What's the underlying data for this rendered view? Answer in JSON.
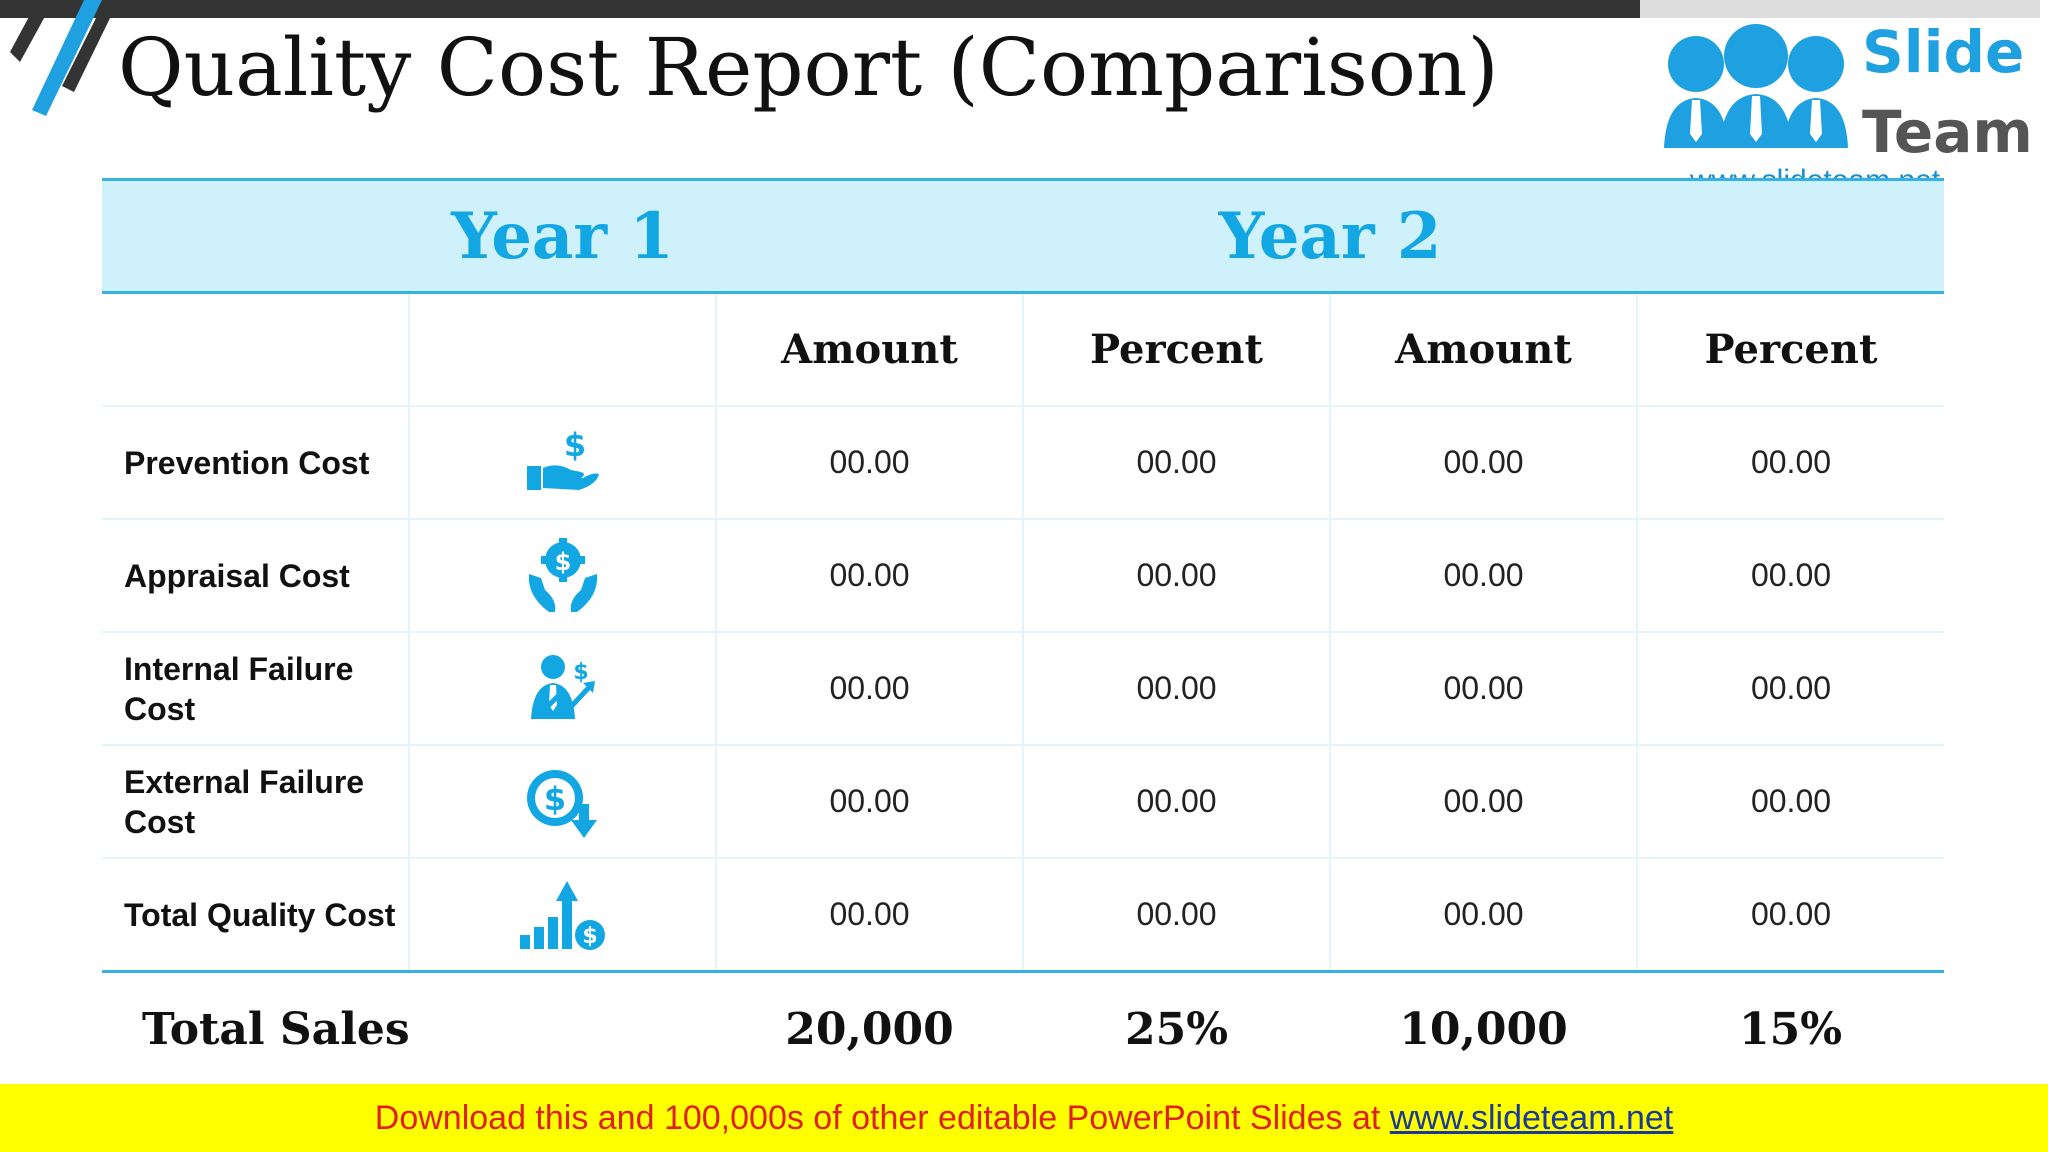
{
  "slide": {
    "title": "Quality Cost Report (Comparison)"
  },
  "logo": {
    "word1": "Slide",
    "word2": "Team",
    "url": "www.slideteam.net"
  },
  "table": {
    "years": [
      "Year 1",
      "Year 2"
    ],
    "headers": [
      "Amount",
      "Percent",
      "Amount",
      "Percent"
    ],
    "rows": [
      {
        "label": "Prevention Cost",
        "icon": "hand-money-icon",
        "values": [
          "00.00",
          "00.00",
          "00.00",
          "00.00"
        ]
      },
      {
        "label": "Appraisal Cost",
        "icon": "gear-dollar-hands-icon",
        "values": [
          "00.00",
          "00.00",
          "00.00",
          "00.00"
        ]
      },
      {
        "label": "Internal Failure Cost",
        "icon": "businessman-dollar-icon",
        "values": [
          "00.00",
          "00.00",
          "00.00",
          "00.00"
        ]
      },
      {
        "label": "External Failure Cost",
        "icon": "dollar-down-icon",
        "values": [
          "00.00",
          "00.00",
          "00.00",
          "00.00"
        ]
      },
      {
        "label": "Total Quality Cost",
        "icon": "growth-chart-dollar-icon",
        "values": [
          "00.00",
          "00.00",
          "00.00",
          "00.00"
        ]
      }
    ],
    "total": {
      "label": "Total Sales",
      "values": [
        "20,000",
        "25%",
        "10,000",
        "15%"
      ]
    }
  },
  "footer": {
    "text": "Download this and 100,000s of other editable PowerPoint Slides at ",
    "link": "www.slideteam.net"
  },
  "colors": {
    "accent": "#12a6e3",
    "header_fill": "#cff1fc",
    "footer_bg": "#ffff00",
    "footer_text": "#e02020"
  }
}
